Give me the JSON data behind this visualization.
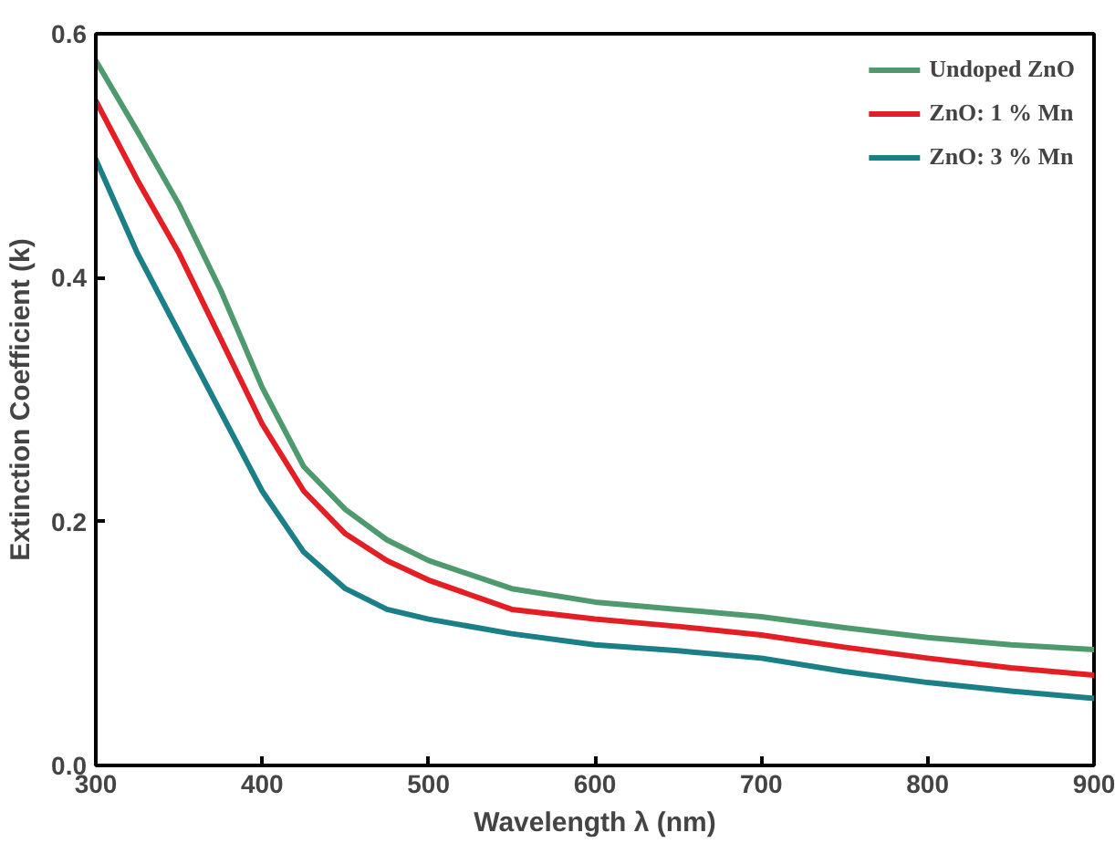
{
  "chart_data": {
    "type": "line",
    "xlabel": "Wavelength λ (nm)",
    "ylabel": "Extinction Coefficient (k)",
    "x": [
      300,
      325,
      350,
      375,
      400,
      425,
      450,
      475,
      500,
      550,
      600,
      650,
      700,
      750,
      800,
      850,
      900
    ],
    "series": [
      {
        "name": "Undoped ZnO",
        "color": "#4e9a6e",
        "values": [
          0.578,
          0.52,
          0.46,
          0.39,
          0.31,
          0.245,
          0.21,
          0.185,
          0.168,
          0.145,
          0.134,
          0.128,
          0.122,
          0.113,
          0.105,
          0.099,
          0.095
        ]
      },
      {
        "name": "ZnO: 1 % Mn",
        "color": "#e31e24",
        "values": [
          0.545,
          0.48,
          0.42,
          0.35,
          0.28,
          0.225,
          0.19,
          0.168,
          0.152,
          0.128,
          0.12,
          0.114,
          0.107,
          0.097,
          0.088,
          0.08,
          0.074
        ]
      },
      {
        "name": "ZnO: 3 % Mn",
        "color": "#1a7f86",
        "values": [
          0.497,
          0.42,
          0.355,
          0.29,
          0.225,
          0.175,
          0.145,
          0.128,
          0.12,
          0.108,
          0.099,
          0.094,
          0.088,
          0.077,
          0.068,
          0.061,
          0.055
        ]
      }
    ],
    "xlim": [
      300,
      900
    ],
    "xticks": [
      300,
      400,
      500,
      600,
      700,
      800,
      900
    ],
    "ylim": [
      0,
      0.6
    ],
    "yticks": [
      {
        "value": 0,
        "label": "0.0"
      },
      {
        "value": 0.2,
        "label": "0.2"
      },
      {
        "value": 0.4,
        "label": "0.4"
      },
      {
        "value": 0.6,
        "label": "0.6"
      }
    ],
    "grid": false,
    "legend": "top right",
    "marker": "none",
    "line_style": "solid"
  }
}
